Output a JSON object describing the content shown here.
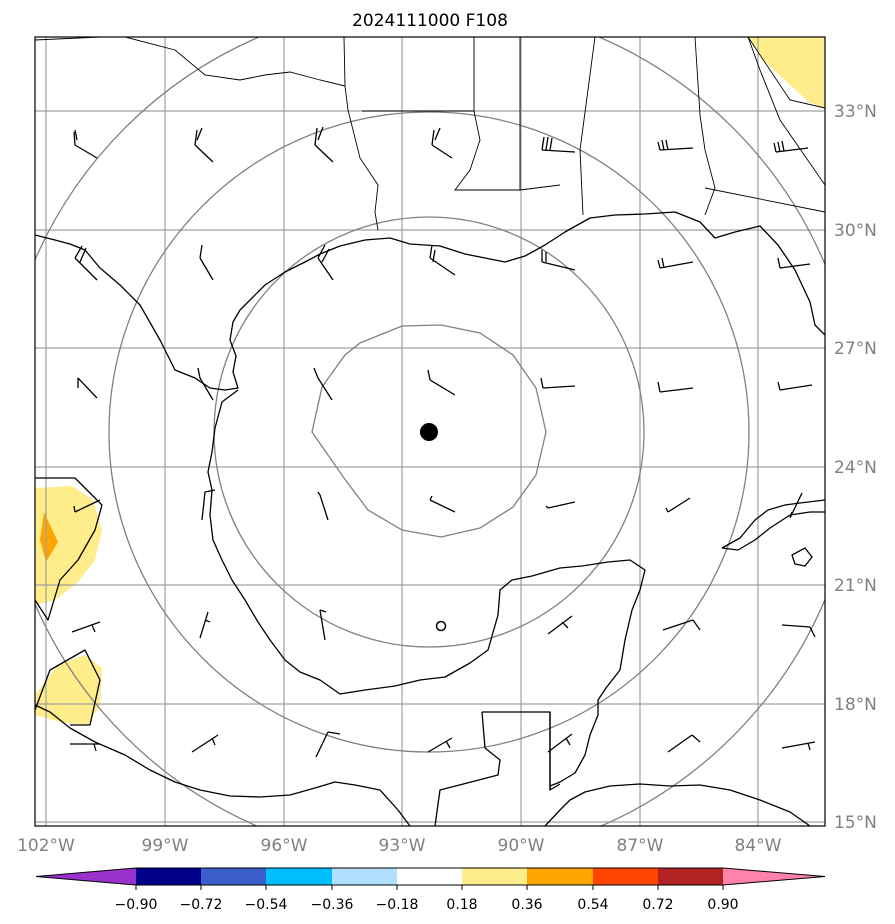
{
  "title": "2024111000 F108",
  "map": {
    "projection": "plate-carree",
    "lon_range": [
      -102.3,
      -82.3
    ],
    "lat_range": [
      14.9,
      34.9
    ],
    "storm_center": {
      "lon": -92.1,
      "lat": 24.9
    },
    "secondary_marker": {
      "lon": -91.8,
      "lat": 20.0
    },
    "range_rings_deg": [
      5,
      10,
      15,
      20
    ],
    "gridlines": true
  },
  "lon_ticks": [
    {
      "value": -102,
      "label": "102°W"
    },
    {
      "value": -99,
      "label": "99°W"
    },
    {
      "value": -96,
      "label": "96°W"
    },
    {
      "value": -93,
      "label": "93°W"
    },
    {
      "value": -90,
      "label": "90°W"
    },
    {
      "value": -87,
      "label": "87°W"
    },
    {
      "value": -84,
      "label": "84°W"
    }
  ],
  "lat_ticks": [
    {
      "value": 33,
      "label": "33°N"
    },
    {
      "value": 30,
      "label": "30°N"
    },
    {
      "value": 27,
      "label": "27°N"
    },
    {
      "value": 24,
      "label": "24°N"
    },
    {
      "value": 21,
      "label": "21°N"
    },
    {
      "value": 18,
      "label": "18°N"
    },
    {
      "value": 15,
      "label": "15°N"
    }
  ],
  "colorbar": {
    "levels": [
      -0.9,
      -0.72,
      -0.54,
      -0.36,
      -0.18,
      0.18,
      0.36,
      0.54,
      0.72,
      0.9
    ],
    "labels": [
      "−0.90",
      "−0.72",
      "−0.54",
      "−0.36",
      "−0.18",
      "0.18",
      "0.36",
      "0.54",
      "0.72",
      "0.90"
    ],
    "colors": [
      "#9932cc",
      "#00008b",
      "#3a5fcd",
      "#00bfff",
      "#b0e0ff",
      "#ffffff",
      "#ffec8b",
      "#ffa500",
      "#ff4500",
      "#b22222",
      "#ff82ab"
    ]
  },
  "colors": {
    "coast": "#000000",
    "grid": "#a0a0a0",
    "rings": "#808080",
    "shade_low": "#ffec8b",
    "shade_mid": "#ffa500"
  }
}
